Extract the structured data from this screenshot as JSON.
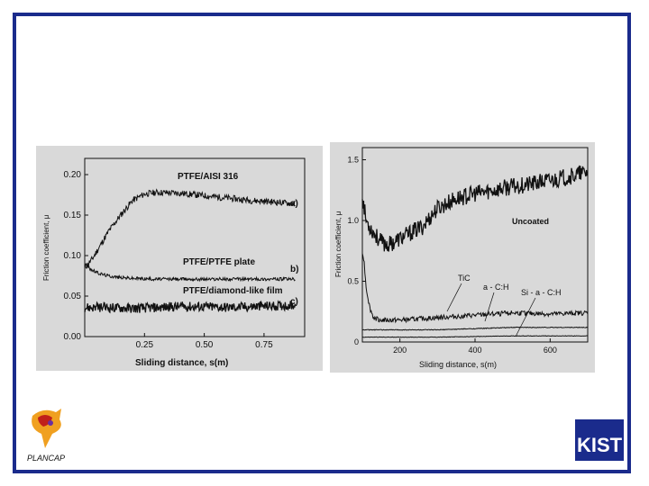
{
  "chart_data": [
    {
      "type": "line",
      "xlabel": "Sliding distance, s(m)",
      "ylabel": "Friction coefficient, μ",
      "xlim": [
        0,
        0.92
      ],
      "ylim": [
        0,
        0.22
      ],
      "x_ticks": [
        "0.25",
        "0.50",
        "0.75"
      ],
      "x_tick_values": [
        0.25,
        0.5,
        0.75
      ],
      "y_ticks": [
        "0.00",
        "0.05",
        "0.10",
        "0.15",
        "0.20"
      ],
      "y_tick_values": [
        0,
        0.05,
        0.1,
        0.15,
        0.2
      ],
      "series": [
        {
          "name": "PTFE/AISI 316",
          "tag": "a)",
          "x": [
            0,
            0.03,
            0.06,
            0.1,
            0.15,
            0.2,
            0.25,
            0.3,
            0.4,
            0.5,
            0.6,
            0.7,
            0.8,
            0.88
          ],
          "y": [
            0.085,
            0.095,
            0.11,
            0.13,
            0.15,
            0.168,
            0.176,
            0.178,
            0.177,
            0.174,
            0.171,
            0.168,
            0.166,
            0.164
          ],
          "noise": 0.004
        },
        {
          "name": "PTFE/PTFE  plate",
          "tag": "b)",
          "x": [
            0,
            0.03,
            0.06,
            0.1,
            0.15,
            0.2,
            0.3,
            0.5,
            0.7,
            0.88
          ],
          "y": [
            0.09,
            0.082,
            0.078,
            0.075,
            0.073,
            0.072,
            0.071,
            0.071,
            0.071,
            0.071
          ],
          "noise": 0.002
        },
        {
          "name": "PTFE/diamond-like film",
          "tag": "c)",
          "x": [
            0,
            0.1,
            0.2,
            0.3,
            0.4,
            0.5,
            0.6,
            0.7,
            0.8,
            0.88
          ],
          "y": [
            0.036,
            0.036,
            0.035,
            0.036,
            0.037,
            0.037,
            0.036,
            0.037,
            0.038,
            0.039
          ],
          "noise": 0.006
        }
      ]
    },
    {
      "type": "line",
      "xlabel": "Sliding distance, s(m)",
      "ylabel": "Friction coefficient, μ",
      "xlim": [
        100,
        700
      ],
      "ylim": [
        0,
        1.6
      ],
      "x_ticks": [
        "200",
        "400",
        "600"
      ],
      "x_tick_values": [
        200,
        400,
        600
      ],
      "y_ticks": [
        "0",
        "0.5",
        "1.0",
        "1.5"
      ],
      "y_tick_values": [
        0,
        0.5,
        1.0,
        1.5
      ],
      "series": [
        {
          "name": "Uncoated",
          "x": [
            100,
            110,
            130,
            150,
            170,
            200,
            230,
            260,
            300,
            350,
            400,
            450,
            500,
            550,
            600,
            650,
            700
          ],
          "y": [
            1.2,
            1.0,
            0.9,
            0.82,
            0.8,
            0.85,
            0.9,
            0.95,
            1.1,
            1.18,
            1.22,
            1.25,
            1.28,
            1.3,
            1.33,
            1.36,
            1.4
          ],
          "noise": 0.07
        },
        {
          "name": "TiC",
          "x": [
            100,
            105,
            110,
            120,
            130,
            150,
            200,
            300,
            400,
            500,
            600,
            700
          ],
          "y": [
            0.75,
            0.65,
            0.45,
            0.28,
            0.2,
            0.18,
            0.18,
            0.2,
            0.22,
            0.24,
            0.23,
            0.24
          ],
          "noise": 0.02
        },
        {
          "name": "a - C:H",
          "x": [
            100,
            200,
            300,
            400,
            500,
            600,
            700
          ],
          "y": [
            0.1,
            0.1,
            0.1,
            0.11,
            0.12,
            0.12,
            0.12
          ],
          "noise": 0.003
        },
        {
          "name": "Si - a - C:H",
          "x": [
            100,
            200,
            300,
            400,
            500,
            600,
            700
          ],
          "y": [
            0.04,
            0.04,
            0.04,
            0.045,
            0.05,
            0.05,
            0.05
          ],
          "noise": 0.002
        }
      ]
    }
  ],
  "logos": {
    "left": "PLANCAP",
    "right": "KIST"
  }
}
